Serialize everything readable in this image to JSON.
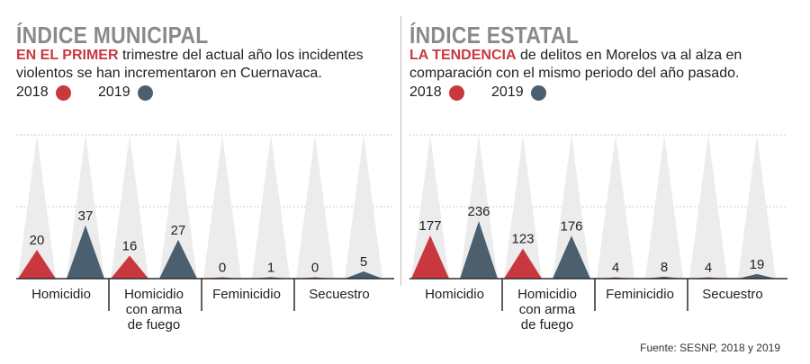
{
  "legend": {
    "y2018": "2018",
    "y2019": "2019"
  },
  "colors": {
    "y2018": "#c8383e",
    "y2019": "#4b5f6e",
    "ghost": "#ececec",
    "grid": "#c9c9c9",
    "axis": "#2a2a2a"
  },
  "panels": [
    {
      "title": "ÍNDICE MUNICIPAL",
      "lead": "EN EL PRIMER",
      "text": " trimestre del actual año los incidentes violentos se han incrementaron en Cuernavaca."
    },
    {
      "title": "ÍNDICE ESTATAL",
      "lead": "LA TENDENCIA",
      "text": " de delitos en Morelos va al alza en comparación con el mismo periodo del año pasado."
    }
  ],
  "chart_data": [
    {
      "type": "bar",
      "title": "ÍNDICE MUNICIPAL",
      "categories": [
        "Homicidio",
        "Homicidio con arma de fuego",
        "Feminicidio",
        "Secuestro"
      ],
      "category_lines": [
        [
          "Homicidio"
        ],
        [
          "Homicidio",
          "con arma",
          "de fuego"
        ],
        [
          "Feminicidio"
        ],
        [
          "Secuestro"
        ]
      ],
      "series": [
        {
          "name": "2018",
          "values": [
            20,
            16,
            0,
            0
          ]
        },
        {
          "name": "2019",
          "values": [
            37,
            27,
            1,
            5
          ]
        }
      ],
      "ylim": [
        0,
        100
      ],
      "grid": true
    },
    {
      "type": "bar",
      "title": "ÍNDICE ESTATAL",
      "categories": [
        "Homicidio",
        "Homicidio con arma de fuego",
        "Feminicidio",
        "Secuestro"
      ],
      "category_lines": [
        [
          "Homicidio"
        ],
        [
          "Homicidio",
          "con arma",
          "de fuego"
        ],
        [
          "Feminicidio"
        ],
        [
          "Secuestro"
        ]
      ],
      "series": [
        {
          "name": "2018",
          "values": [
            177,
            123,
            4,
            4
          ]
        },
        {
          "name": "2019",
          "values": [
            236,
            176,
            8,
            19
          ]
        }
      ],
      "ylim": [
        0,
        590
      ],
      "grid": true
    }
  ],
  "source": "Fuente: SESNP, 2018 y 2019"
}
